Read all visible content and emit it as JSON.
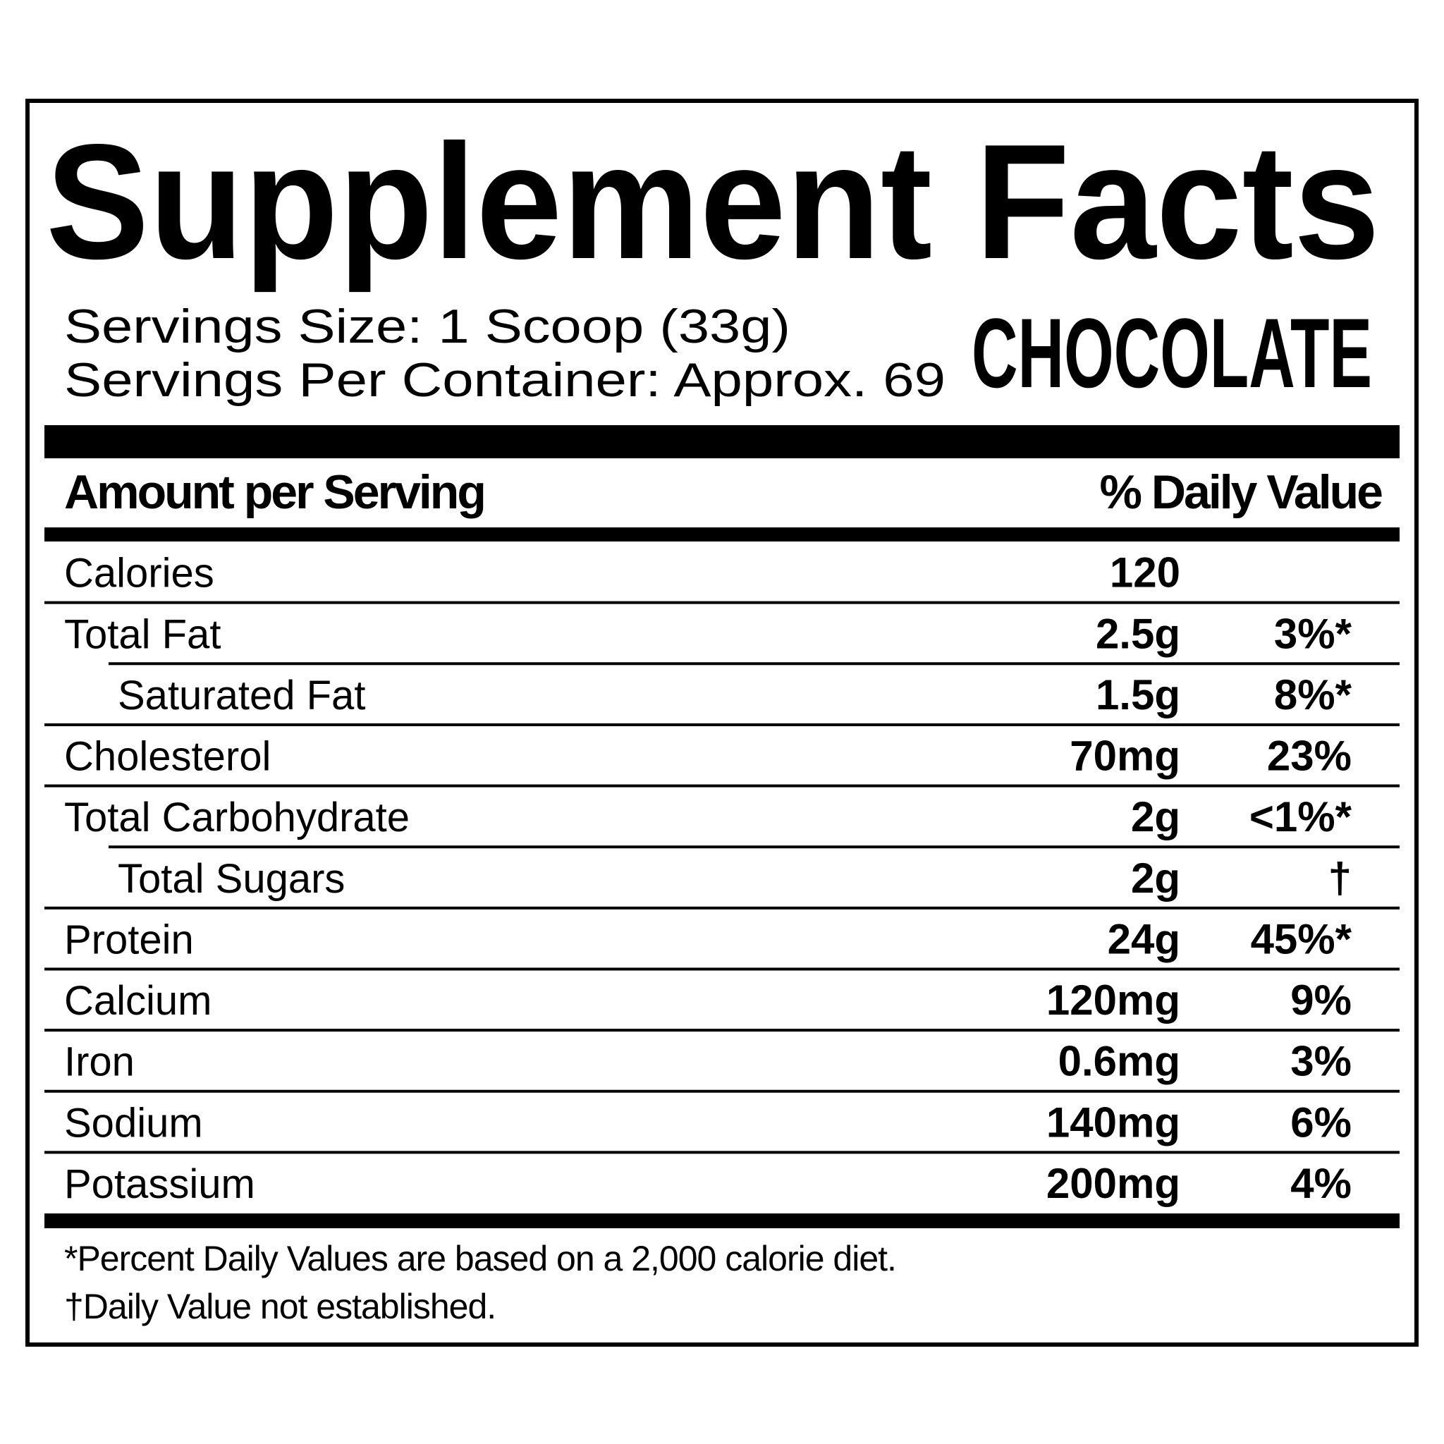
{
  "title": "Supplement Facts",
  "serving_size": "Servings Size: 1 Scoop (33g)",
  "servings_per_container": "Servings Per Container: Approx. 69",
  "flavor": "CHOCOLATE",
  "header": {
    "amount": "Amount per Serving",
    "daily_value": "% Daily Value"
  },
  "rows": [
    {
      "name": "Calories",
      "amount": "120"
    },
    {
      "name": "Total Fat",
      "amount": "2.5g",
      "dv": "3%*",
      "sub": [
        {
          "name": "Saturated Fat",
          "amount": "1.5g",
          "dv": "8%*"
        }
      ]
    },
    {
      "name": "Cholesterol",
      "amount": "70mg",
      "dv": "23%"
    },
    {
      "name": "Total Carbohydrate",
      "amount": "2g",
      "dv": "<1%*",
      "sub": [
        {
          "name": "Total Sugars",
          "amount": "2g",
          "dv": "†"
        }
      ]
    },
    {
      "name": "Protein",
      "amount": "24g",
      "dv": "45%*"
    },
    {
      "name": "Calcium",
      "amount": "120mg",
      "dv": "9%"
    },
    {
      "name": "Iron",
      "amount": "0.6mg",
      "dv": "3%"
    },
    {
      "name": "Sodium",
      "amount": "140mg",
      "dv": "6%"
    },
    {
      "name": "Potassium",
      "amount": "200mg",
      "dv": "4%"
    }
  ],
  "footnotes": [
    "*Percent Daily Values are based on a 2,000 calorie diet.",
    "†Daily Value not established."
  ]
}
